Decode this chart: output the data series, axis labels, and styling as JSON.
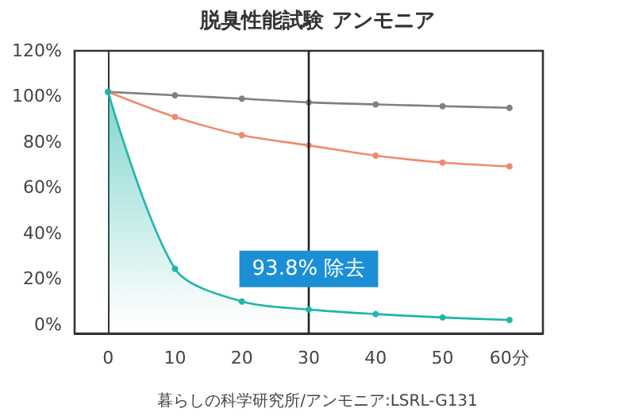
{
  "chart_data": {
    "type": "line",
    "title": "脱臭性能試験 アンモニア",
    "x": [
      0,
      10,
      20,
      30,
      40,
      50,
      60
    ],
    "series": [
      {
        "color": "#808080",
        "values": [
          102,
          100.5,
          99,
          97.4,
          96.5,
          95.7,
          95
        ]
      },
      {
        "color": "#f08a6e",
        "values": [
          102,
          91,
          83,
          78.5,
          74,
          71,
          69.3
        ]
      },
      {
        "type": "area",
        "color": "#1fb5a8",
        "values": [
          102,
          24.4,
          10,
          6.5,
          4.5,
          3,
          1.9
        ]
      }
    ],
    "xlim": [
      -5,
      65
    ],
    "xticks": [
      0,
      10,
      20,
      30,
      40,
      50,
      {
        "value": 60,
        "label": "60分"
      }
    ],
    "ylim": [
      -4,
      120
    ],
    "yticks": [
      {
        "value": 0,
        "label": "0%"
      },
      {
        "value": 20,
        "label": "20%"
      },
      {
        "value": 40,
        "label": "40%"
      },
      {
        "value": 60,
        "label": "60%"
      },
      {
        "value": 80,
        "label": "80%"
      },
      {
        "value": 100,
        "label": "100%"
      },
      {
        "value": 120,
        "label": "120%"
      }
    ],
    "ref_lines": [
      {
        "axis": "x",
        "value": 30,
        "color": "#222222"
      }
    ],
    "annotations": [
      {
        "text": "93.8% 除去",
        "x": 30,
        "y": 6.5
      },
      "暮らしの科学研究所/アンモニア:LSRL-G131"
    ],
    "marker": "circle",
    "grid": false
  }
}
